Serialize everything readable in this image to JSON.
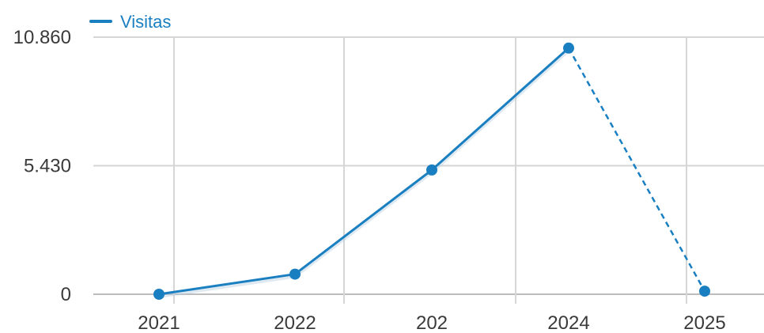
{
  "chart_data": {
    "type": "line",
    "categories": [
      "2021",
      "2022",
      "202",
      "2024",
      "2025"
    ],
    "y_tick_labels": [
      "0",
      "5.430",
      "10.860"
    ],
    "ylim": [
      0,
      10860
    ],
    "grid": true,
    "legend_position": "top-left",
    "series": [
      {
        "name": "Visitas",
        "values": [
          0,
          850,
          5250,
          10400,
          130
        ],
        "color": "#1a7fc1",
        "dashed_last_segment": true
      }
    ]
  }
}
